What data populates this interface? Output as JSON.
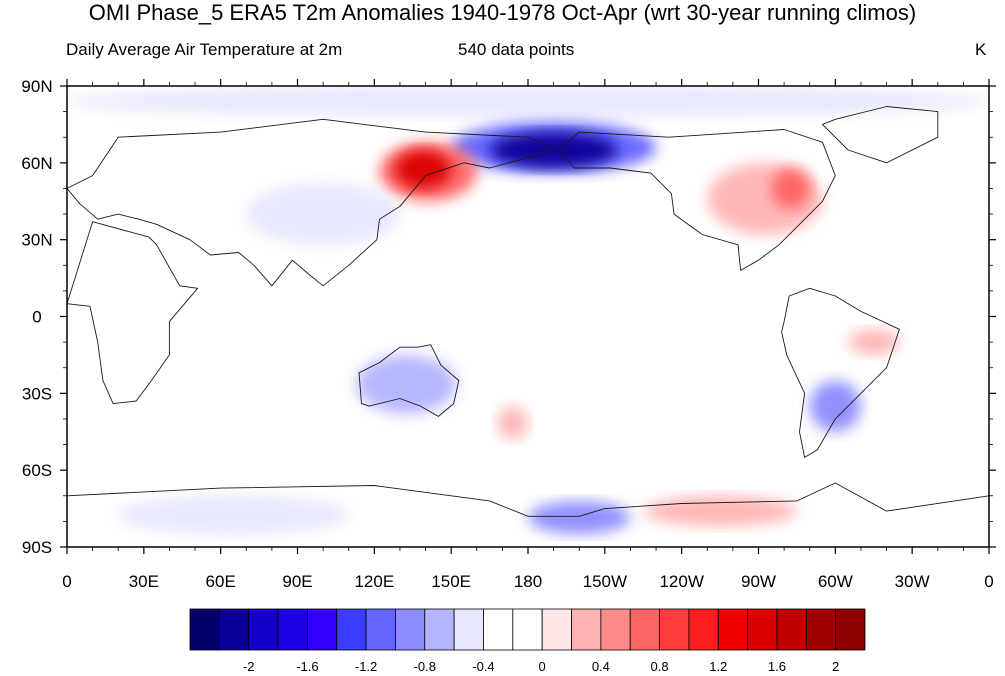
{
  "title": "OMI Phase_5 ERA5 T2m Anomalies 1940-1978 Oct-Apr (wrt 30-year running climos)",
  "subtitle_left": "Daily Average Air Temperature at 2m",
  "subtitle_center": "540 data points",
  "units": "K",
  "map": {
    "projection": "cylindrical-equidistant",
    "center_longitude": 180,
    "lon_range": [
      0,
      360
    ],
    "lat_range": [
      -90,
      90
    ],
    "lat_ticks": [
      {
        "value": 90,
        "label": "90N"
      },
      {
        "value": 60,
        "label": "60N"
      },
      {
        "value": 30,
        "label": "30N"
      },
      {
        "value": 0,
        "label": "0"
      },
      {
        "value": -30,
        "label": "30S"
      },
      {
        "value": -60,
        "label": "60S"
      },
      {
        "value": -90,
        "label": "90S"
      }
    ],
    "lon_ticks": [
      {
        "value": 0,
        "label": "0"
      },
      {
        "value": 30,
        "label": "30E"
      },
      {
        "value": 60,
        "label": "60E"
      },
      {
        "value": 90,
        "label": "90E"
      },
      {
        "value": 120,
        "label": "120E"
      },
      {
        "value": 150,
        "label": "150E"
      },
      {
        "value": 180,
        "label": "180"
      },
      {
        "value": 210,
        "label": "150W"
      },
      {
        "value": 240,
        "label": "120W"
      },
      {
        "value": 270,
        "label": "90W"
      },
      {
        "value": 300,
        "label": "60W"
      },
      {
        "value": 330,
        "label": "30W"
      },
      {
        "value": 360,
        "label": "0"
      }
    ],
    "anomaly_regions": [
      {
        "name": "arctic-cold-band",
        "lon": [
          0,
          360
        ],
        "lat": [
          78,
          90
        ],
        "value": -0.5
      },
      {
        "name": "east-siberia-cold",
        "lon": [
          150,
          230
        ],
        "lat": [
          56,
          76
        ],
        "value": -1.0
      },
      {
        "name": "east-siberia-cold-core",
        "lon": [
          165,
          215
        ],
        "lat": [
          58,
          72
        ],
        "value": -2.0
      },
      {
        "name": "northeast-asia-warm",
        "lon": [
          122,
          160
        ],
        "lat": [
          45,
          68
        ],
        "value": 0.8
      },
      {
        "name": "northeast-asia-warm-core",
        "lon": [
          128,
          150
        ],
        "lat": [
          50,
          65
        ],
        "value": 1.6
      },
      {
        "name": "north-america-warm",
        "lon": [
          250,
          295
        ],
        "lat": [
          32,
          60
        ],
        "value": 0.4
      },
      {
        "name": "north-america-warm-core",
        "lon": [
          275,
          290
        ],
        "lat": [
          42,
          58
        ],
        "value": 0.8
      },
      {
        "name": "australia-cold",
        "lon": [
          113,
          152
        ],
        "lat": [
          -38,
          -15
        ],
        "value": -0.6
      },
      {
        "name": "south-america-cold",
        "lon": [
          290,
          310
        ],
        "lat": [
          -45,
          -25
        ],
        "value": -0.8
      },
      {
        "name": "brazil-warm",
        "lon": [
          305,
          325
        ],
        "lat": [
          -15,
          -5
        ],
        "value": 0.4
      },
      {
        "name": "central-asia-cold",
        "lon": [
          70,
          130
        ],
        "lat": [
          28,
          52
        ],
        "value": -0.4
      },
      {
        "name": "antarctica-cold-east",
        "lon": [
          20,
          110
        ],
        "lat": [
          -85,
          -70
        ],
        "value": -0.4
      },
      {
        "name": "antarctica-cold-ross",
        "lon": [
          180,
          220
        ],
        "lat": [
          -85,
          -72
        ],
        "value": -0.8
      },
      {
        "name": "antarctica-warm-west",
        "lon": [
          225,
          285
        ],
        "lat": [
          -82,
          -70
        ],
        "value": 0.4
      },
      {
        "name": "new-zealand-warm",
        "lon": [
          168,
          180
        ],
        "lat": [
          -48,
          -35
        ],
        "value": 0.4
      },
      {
        "name": "europe-cold",
        "lon": [
          10,
          50
        ],
        "lat": [
          45,
          62
        ],
        "value": -0.3
      }
    ],
    "continents": [
      {
        "name": "north-america",
        "coords": [
          [
            192,
            65
          ],
          [
            200,
            72
          ],
          [
            235,
            70
          ],
          [
            280,
            73
          ],
          [
            295,
            68
          ],
          [
            300,
            55
          ],
          [
            295,
            45
          ],
          [
            285,
            35
          ],
          [
            278,
            28
          ],
          [
            270,
            22
          ],
          [
            263,
            18
          ],
          [
            262,
            28
          ],
          [
            248,
            32
          ],
          [
            237,
            40
          ],
          [
            236,
            48
          ],
          [
            228,
            56
          ],
          [
            212,
            58
          ],
          [
            198,
            58
          ]
        ]
      },
      {
        "name": "south-america",
        "coords": [
          [
            280,
            -2
          ],
          [
            282,
            8
          ],
          [
            290,
            11
          ],
          [
            300,
            8
          ],
          [
            310,
            2
          ],
          [
            325,
            -5
          ],
          [
            320,
            -20
          ],
          [
            310,
            -30
          ],
          [
            300,
            -40
          ],
          [
            293,
            -52
          ],
          [
            288,
            -55
          ],
          [
            286,
            -45
          ],
          [
            288,
            -30
          ],
          [
            281,
            -15
          ],
          [
            279,
            -6
          ]
        ]
      },
      {
        "name": "eurasia",
        "coords": [
          [
            10,
            55
          ],
          [
            20,
            70
          ],
          [
            60,
            72
          ],
          [
            100,
            77
          ],
          [
            140,
            72
          ],
          [
            180,
            70
          ],
          [
            191,
            65
          ],
          [
            180,
            62
          ],
          [
            165,
            58
          ],
          [
            155,
            60
          ],
          [
            140,
            55
          ],
          [
            130,
            43
          ],
          [
            122,
            38
          ],
          [
            121,
            30
          ],
          [
            110,
            20
          ],
          [
            100,
            12
          ],
          [
            95,
            16
          ],
          [
            88,
            22
          ],
          [
            80,
            12
          ],
          [
            73,
            20
          ],
          [
            67,
            25
          ],
          [
            56,
            24
          ],
          [
            48,
            30
          ],
          [
            35,
            36
          ],
          [
            28,
            38
          ],
          [
            20,
            40
          ],
          [
            12,
            38
          ],
          [
            5,
            44
          ],
          [
            0,
            50
          ]
        ]
      },
      {
        "name": "africa",
        "coords": [
          [
            10,
            37
          ],
          [
            32,
            31
          ],
          [
            35,
            28
          ],
          [
            44,
            12
          ],
          [
            51,
            11
          ],
          [
            40,
            -2
          ],
          [
            40,
            -15
          ],
          [
            33,
            -25
          ],
          [
            27,
            -33
          ],
          [
            18,
            -34
          ],
          [
            14,
            -25
          ],
          [
            12,
            -10
          ],
          [
            9,
            4
          ],
          [
            0,
            5
          ]
        ]
      },
      {
        "name": "australia",
        "coords": [
          [
            114,
            -22
          ],
          [
            122,
            -18
          ],
          [
            130,
            -12
          ],
          [
            137,
            -12
          ],
          [
            142,
            -11
          ],
          [
            146,
            -19
          ],
          [
            153,
            -25
          ],
          [
            151,
            -34
          ],
          [
            145,
            -39
          ],
          [
            138,
            -35
          ],
          [
            130,
            -32
          ],
          [
            118,
            -35
          ],
          [
            115,
            -34
          ]
        ]
      },
      {
        "name": "greenland",
        "coords": [
          [
            300,
            77
          ],
          [
            320,
            82
          ],
          [
            340,
            80
          ],
          [
            340,
            70
          ],
          [
            320,
            60
          ],
          [
            305,
            65
          ],
          [
            295,
            75
          ]
        ]
      },
      {
        "name": "antarctica",
        "coords": [
          [
            0,
            -70
          ],
          [
            60,
            -67
          ],
          [
            120,
            -66
          ],
          [
            165,
            -72
          ],
          [
            180,
            -78
          ],
          [
            200,
            -78
          ],
          [
            210,
            -75
          ],
          [
            240,
            -73
          ],
          [
            285,
            -72
          ],
          [
            300,
            -65
          ],
          [
            320,
            -76
          ],
          [
            360,
            -70
          ],
          [
            360,
            -90
          ],
          [
            0,
            -90
          ]
        ]
      }
    ]
  },
  "colorbar": {
    "colors": [
      "#03006b",
      "#0a0096",
      "#1400c8",
      "#1e00e6",
      "#3200ff",
      "#3c3cff",
      "#6464ff",
      "#8c8cff",
      "#b4b4ff",
      "#e6e6ff",
      "#ffffff",
      "#ffffff",
      "#ffe6e6",
      "#ffb4b4",
      "#ff8c8c",
      "#ff6464",
      "#ff3c3c",
      "#ff1e1e",
      "#f00000",
      "#dc0000",
      "#c00000",
      "#a00000",
      "#8c0000"
    ],
    "labels": [
      {
        "between": 1,
        "text": "-2"
      },
      {
        "between": 3,
        "text": "-1.6"
      },
      {
        "between": 5,
        "text": "-1.2"
      },
      {
        "between": 7,
        "text": "-0.8"
      },
      {
        "between": 9,
        "text": "-0.4"
      },
      {
        "between": 11,
        "text": "0"
      },
      {
        "between": 13,
        "text": "0.4"
      },
      {
        "between": 15,
        "text": "0.8"
      },
      {
        "between": 17,
        "text": "1.2"
      },
      {
        "between": 19,
        "text": "1.6"
      },
      {
        "between": 21,
        "text": "2"
      }
    ]
  }
}
